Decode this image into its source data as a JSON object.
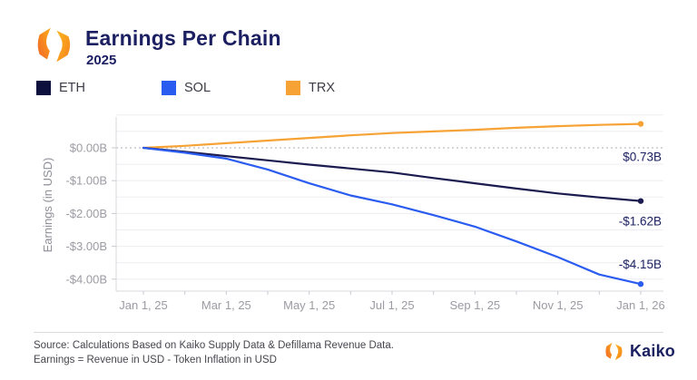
{
  "header": {
    "title": "Earnings Per Chain",
    "subtitle": "2025",
    "logo_name": "kaiko-logo"
  },
  "legend": [
    {
      "label": "ETH",
      "color": "#0d0f3d"
    },
    {
      "label": "SOL",
      "color": "#2b5cf0"
    },
    {
      "label": "TRX",
      "color": "#f7a234"
    }
  ],
  "chart_data": {
    "type": "line",
    "title": "Earnings Per Chain",
    "subtitle": "2025",
    "ylabel": "Earnings (in USD)",
    "xlabel": "",
    "ylim": [
      -4.4,
      1.0
    ],
    "grid": "horizontal, every 0.5B, zero line dotted",
    "legend_position": "top",
    "x_unit": "months since Jan 1, 2025",
    "x_ticks": [
      {
        "label": "Jan 1, 25",
        "month": 0
      },
      {
        "label": "Mar 1, 25",
        "month": 2
      },
      {
        "label": "May 1, 25",
        "month": 4
      },
      {
        "label": "Jul 1, 25",
        "month": 6
      },
      {
        "label": "Sep 1, 25",
        "month": 8
      },
      {
        "label": "Nov 1, 25",
        "month": 10
      },
      {
        "label": "Jan 1, 26",
        "month": 12
      }
    ],
    "y_ticks": [
      {
        "label": "$0.00B",
        "value": 0
      },
      {
        "label": "-$1.00B",
        "value": -1
      },
      {
        "label": "-$2.00B",
        "value": -2
      },
      {
        "label": "-$3.00B",
        "value": -3
      },
      {
        "label": "-$4.00B",
        "value": -4
      }
    ],
    "series": [
      {
        "name": "TRX",
        "color": "#f7a234",
        "end_label": "$0.73B",
        "end_value": 0.73,
        "label_dy": 41,
        "values": [
          0,
          0.06,
          0.14,
          0.22,
          0.3,
          0.38,
          0.45,
          0.5,
          0.55,
          0.61,
          0.66,
          0.7,
          0.73
        ]
      },
      {
        "name": "ETH",
        "color": "#1b1b4f",
        "end_label": "-$1.62B",
        "end_value": -1.62,
        "label_dy": 27,
        "values": [
          0,
          -0.12,
          -0.25,
          -0.38,
          -0.51,
          -0.63,
          -0.75,
          -0.92,
          -1.08,
          -1.24,
          -1.39,
          -1.51,
          -1.62
        ]
      },
      {
        "name": "SOL",
        "color": "#2b5cf0",
        "end_label": "-$4.15B",
        "end_value": -4.15,
        "label_dy": -17,
        "values": [
          0,
          -0.15,
          -0.33,
          -0.66,
          -1.08,
          -1.45,
          -1.72,
          -2.05,
          -2.4,
          -2.85,
          -3.33,
          -3.86,
          -4.15
        ]
      }
    ]
  },
  "footer": {
    "source_line1": "Source: Calculations Based on Kaiko Supply Data & Defillama Revenue Data.",
    "source_line2": "Earnings = Revenue in USD - Token Inflation in USD",
    "brand": "Kaiko"
  }
}
